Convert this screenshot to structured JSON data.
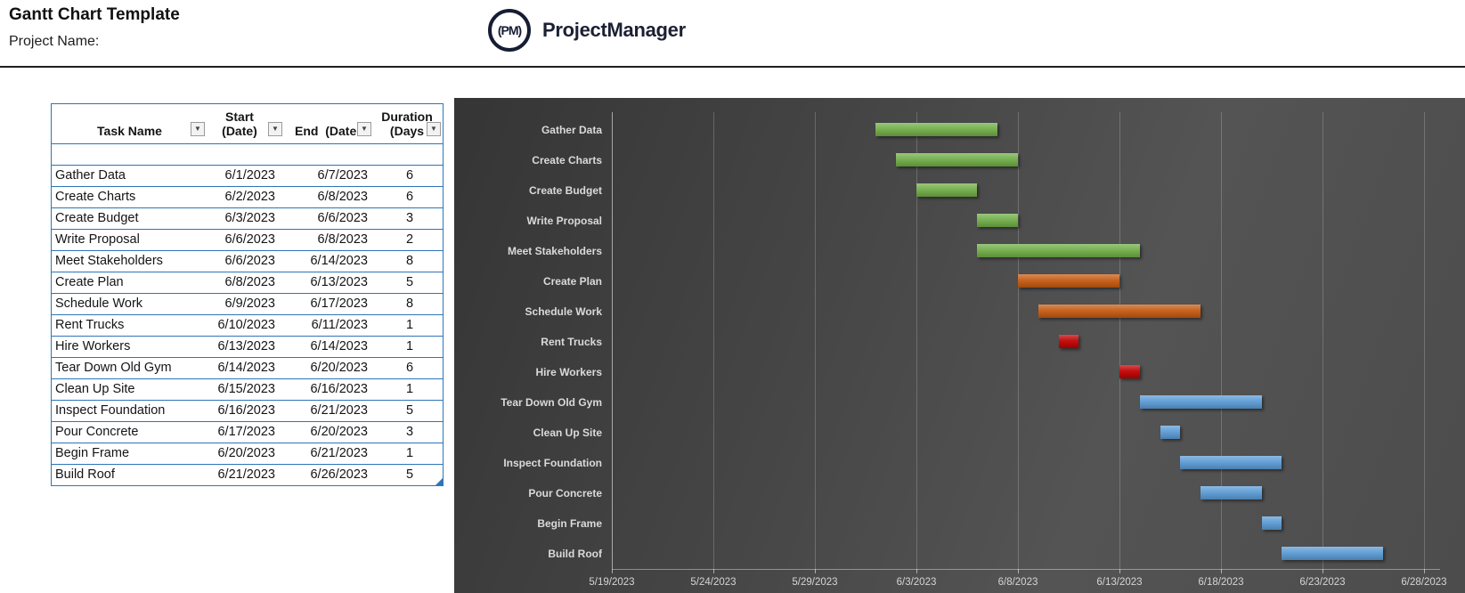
{
  "page": {
    "title": "Gantt Chart Template",
    "project_name_label": "Project Name:"
  },
  "logo": {
    "monogram": "(PM)",
    "brand": "ProjectManager"
  },
  "table": {
    "headers": [
      {
        "line1": "",
        "line2": "Task Name"
      },
      {
        "line1": "Start",
        "line2": "(Date)"
      },
      {
        "line1": "",
        "line2": "End  (Date"
      },
      {
        "line1": "Duration",
        "line2": "(Days"
      }
    ]
  },
  "chart_data": {
    "type": "bar",
    "subtype": "gantt",
    "title": "",
    "categories": [
      "Gather Data",
      "Create Charts",
      "Create Budget",
      "Write Proposal",
      "Meet Stakeholders",
      "Create Plan",
      "Schedule Work",
      "Rent Trucks",
      "Hire Workers",
      "Tear Down Old Gym",
      "Clean Up Site",
      "Inspect Foundation",
      "Pour Concrete",
      "Begin Frame",
      "Build Roof"
    ],
    "tasks": [
      {
        "name": "Gather Data",
        "start": "6/1/2023",
        "end": "6/7/2023",
        "duration": 6,
        "color": "green"
      },
      {
        "name": "Create Charts",
        "start": "6/2/2023",
        "end": "6/8/2023",
        "duration": 6,
        "color": "green"
      },
      {
        "name": "Create Budget",
        "start": "6/3/2023",
        "end": "6/6/2023",
        "duration": 3,
        "color": "green"
      },
      {
        "name": "Write Proposal",
        "start": "6/6/2023",
        "end": "6/8/2023",
        "duration": 2,
        "color": "green"
      },
      {
        "name": "Meet Stakeholders",
        "start": "6/6/2023",
        "end": "6/14/2023",
        "duration": 8,
        "color": "green"
      },
      {
        "name": "Create Plan",
        "start": "6/8/2023",
        "end": "6/13/2023",
        "duration": 5,
        "color": "orange"
      },
      {
        "name": "Schedule Work",
        "start": "6/9/2023",
        "end": "6/17/2023",
        "duration": 8,
        "color": "orange"
      },
      {
        "name": "Rent Trucks",
        "start": "6/10/2023",
        "end": "6/11/2023",
        "duration": 1,
        "color": "red"
      },
      {
        "name": "Hire Workers",
        "start": "6/13/2023",
        "end": "6/14/2023",
        "duration": 1,
        "color": "red"
      },
      {
        "name": "Tear Down Old Gym",
        "start": "6/14/2023",
        "end": "6/20/2023",
        "duration": 6,
        "color": "blue"
      },
      {
        "name": "Clean Up Site",
        "start": "6/15/2023",
        "end": "6/16/2023",
        "duration": 1,
        "color": "blue"
      },
      {
        "name": "Inspect Foundation",
        "start": "6/16/2023",
        "end": "6/21/2023",
        "duration": 5,
        "color": "blue"
      },
      {
        "name": "Pour Concrete",
        "start": "6/17/2023",
        "end": "6/20/2023",
        "duration": 3,
        "color": "blue"
      },
      {
        "name": "Begin Frame",
        "start": "6/20/2023",
        "end": "6/21/2023",
        "duration": 1,
        "color": "blue"
      },
      {
        "name": "Build Roof",
        "start": "6/21/2023",
        "end": "6/26/2023",
        "duration": 5,
        "color": "blue"
      }
    ],
    "x_ticks": [
      "5/19/2023",
      "5/24/2023",
      "5/29/2023",
      "6/3/2023",
      "6/8/2023",
      "6/13/2023",
      "6/18/2023",
      "6/23/2023",
      "6/28/2023"
    ],
    "axis": {
      "min": "5/19/2023",
      "max": "6/28/2023",
      "major_unit_days": 5,
      "gridlines": true
    },
    "legend": "none",
    "palette": {
      "green": "#70AD47",
      "orange": "#C55A11",
      "red": "#C00000",
      "blue": "#5B9BD5"
    },
    "background": "#454545",
    "label_color": "#dadada"
  }
}
